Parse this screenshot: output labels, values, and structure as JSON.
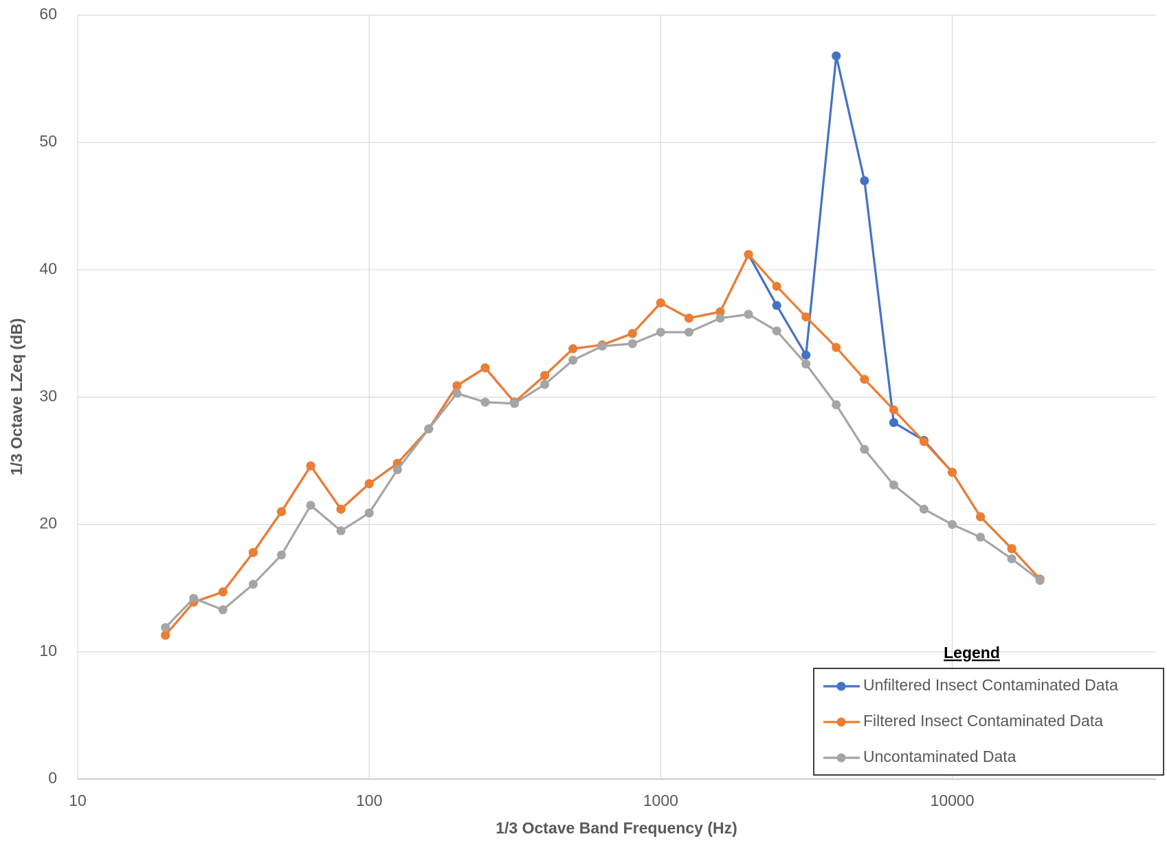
{
  "chart_data": {
    "type": "line",
    "x_label": "1/3 Octave Band Frequency (Hz)",
    "y_label": "1/3 Octave LZeq (dB)",
    "x": [
      20,
      25,
      31.5,
      40,
      50,
      63,
      80,
      100,
      125,
      160,
      200,
      250,
      315,
      400,
      500,
      630,
      800,
      1000,
      1250,
      1600,
      2000,
      2500,
      3150,
      4000,
      5000,
      6300,
      8000,
      10000,
      12500,
      16000,
      20000
    ],
    "series": [
      {
        "name": "Unfiltered Insect Contaminated Data",
        "color": "#4472c4",
        "values": [
          11.3,
          13.9,
          14.7,
          17.8,
          21.0,
          24.6,
          21.2,
          23.2,
          24.8,
          27.5,
          30.9,
          32.3,
          29.6,
          31.7,
          33.8,
          34.1,
          35.0,
          37.4,
          36.2,
          36.7,
          41.2,
          37.2,
          33.3,
          56.8,
          47.0,
          28.0,
          26.6,
          24.1,
          20.6,
          18.1,
          15.7
        ]
      },
      {
        "name": "Filtered Insect Contaminated Data",
        "color": "#ed7d31",
        "values": [
          11.3,
          13.9,
          14.7,
          17.8,
          21.0,
          24.6,
          21.2,
          23.2,
          24.8,
          27.5,
          30.9,
          32.3,
          29.6,
          31.7,
          33.8,
          34.1,
          35.0,
          37.4,
          36.2,
          36.7,
          41.2,
          38.7,
          36.3,
          33.9,
          31.4,
          29.0,
          26.5,
          24.1,
          20.6,
          18.1,
          15.7
        ]
      },
      {
        "name": "Uncontaminated Data",
        "color": "#a5a5a5",
        "values": [
          11.9,
          14.2,
          13.3,
          15.3,
          17.6,
          21.5,
          19.5,
          20.9,
          24.3,
          27.5,
          30.3,
          29.6,
          29.5,
          31.0,
          32.9,
          34.0,
          34.2,
          35.1,
          35.1,
          36.2,
          36.5,
          35.2,
          32.6,
          29.4,
          25.9,
          23.1,
          21.2,
          20.0,
          19.0,
          17.3,
          15.6
        ]
      }
    ],
    "xlim": [
      10,
      50000
    ],
    "xticks": [
      10,
      100,
      1000,
      10000
    ],
    "x_log": true,
    "ylim": [
      0,
      60
    ],
    "yticks": [
      0,
      10,
      20,
      30,
      40,
      50,
      60
    ],
    "grid": true,
    "legend": "bottom right",
    "legend_title": "Legend"
  }
}
